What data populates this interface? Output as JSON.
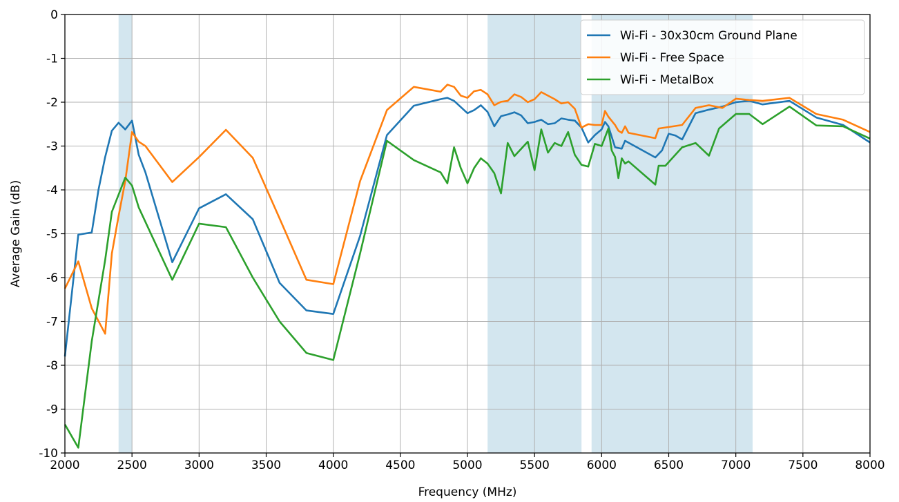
{
  "chart_data": {
    "type": "line",
    "title": "",
    "xlabel": "Frequency (MHz)",
    "ylabel": "Average Gain (dB)",
    "xlim": [
      2000,
      8000
    ],
    "ylim": [
      -10,
      0
    ],
    "xticks": [
      2000,
      2500,
      3000,
      3500,
      4000,
      4500,
      5000,
      5500,
      6000,
      6500,
      7000,
      7500,
      8000
    ],
    "yticks": [
      0,
      -1,
      -2,
      -3,
      -4,
      -5,
      -6,
      -7,
      -8,
      -9,
      -10
    ],
    "grid": true,
    "legend_position": "top-right",
    "shaded_bands": [
      [
        2400,
        2500
      ],
      [
        5150,
        5850
      ],
      [
        5925,
        7125
      ]
    ],
    "band_color": "#d3e6ef",
    "series": [
      {
        "name": "Wi-Fi - 30x30cm Ground Plane",
        "color": "#1f77b4",
        "points": [
          [
            2000,
            -7.8
          ],
          [
            2100,
            -5.02
          ],
          [
            2200,
            -4.97
          ],
          [
            2250,
            -4.0
          ],
          [
            2300,
            -3.25
          ],
          [
            2350,
            -2.65
          ],
          [
            2400,
            -2.47
          ],
          [
            2450,
            -2.62
          ],
          [
            2500,
            -2.42
          ],
          [
            2550,
            -3.2
          ],
          [
            2600,
            -3.6
          ],
          [
            2800,
            -5.65
          ],
          [
            3000,
            -4.42
          ],
          [
            3200,
            -4.1
          ],
          [
            3400,
            -4.67
          ],
          [
            3600,
            -6.12
          ],
          [
            3800,
            -6.75
          ],
          [
            4000,
            -6.83
          ],
          [
            4200,
            -5.05
          ],
          [
            4400,
            -2.75
          ],
          [
            4600,
            -2.08
          ],
          [
            4800,
            -1.93
          ],
          [
            4850,
            -1.9
          ],
          [
            4900,
            -1.97
          ],
          [
            5000,
            -2.25
          ],
          [
            5050,
            -2.18
          ],
          [
            5100,
            -2.07
          ],
          [
            5150,
            -2.22
          ],
          [
            5200,
            -2.55
          ],
          [
            5250,
            -2.32
          ],
          [
            5300,
            -2.28
          ],
          [
            5350,
            -2.23
          ],
          [
            5400,
            -2.3
          ],
          [
            5450,
            -2.48
          ],
          [
            5500,
            -2.45
          ],
          [
            5550,
            -2.4
          ],
          [
            5600,
            -2.5
          ],
          [
            5650,
            -2.48
          ],
          [
            5700,
            -2.37
          ],
          [
            5750,
            -2.4
          ],
          [
            5800,
            -2.42
          ],
          [
            5850,
            -2.58
          ],
          [
            5900,
            -2.92
          ],
          [
            5950,
            -2.75
          ],
          [
            6000,
            -2.62
          ],
          [
            6025,
            -2.45
          ],
          [
            6050,
            -2.55
          ],
          [
            6100,
            -3.03
          ],
          [
            6150,
            -3.06
          ],
          [
            6175,
            -2.88
          ],
          [
            6400,
            -3.26
          ],
          [
            6450,
            -3.1
          ],
          [
            6500,
            -2.72
          ],
          [
            6550,
            -2.76
          ],
          [
            6600,
            -2.85
          ],
          [
            6700,
            -2.25
          ],
          [
            6800,
            -2.17
          ],
          [
            6900,
            -2.1
          ],
          [
            7000,
            -2.0
          ],
          [
            7100,
            -1.97
          ],
          [
            7200,
            -2.05
          ],
          [
            7400,
            -1.97
          ],
          [
            7600,
            -2.35
          ],
          [
            7800,
            -2.52
          ],
          [
            8000,
            -2.92
          ]
        ]
      },
      {
        "name": "Wi-Fi - Free Space",
        "color": "#ff7f0e",
        "points": [
          [
            2000,
            -6.25
          ],
          [
            2100,
            -5.63
          ],
          [
            2200,
            -6.7
          ],
          [
            2300,
            -7.28
          ],
          [
            2350,
            -5.45
          ],
          [
            2400,
            -4.6
          ],
          [
            2450,
            -3.8
          ],
          [
            2500,
            -2.68
          ],
          [
            2550,
            -2.9
          ],
          [
            2600,
            -3.0
          ],
          [
            2800,
            -3.82
          ],
          [
            3000,
            -3.25
          ],
          [
            3200,
            -2.63
          ],
          [
            3400,
            -3.27
          ],
          [
            3600,
            -4.65
          ],
          [
            3800,
            -6.05
          ],
          [
            4000,
            -6.15
          ],
          [
            4200,
            -3.8
          ],
          [
            4400,
            -2.18
          ],
          [
            4600,
            -1.65
          ],
          [
            4800,
            -1.76
          ],
          [
            4850,
            -1.6
          ],
          [
            4900,
            -1.65
          ],
          [
            4950,
            -1.85
          ],
          [
            5000,
            -1.9
          ],
          [
            5050,
            -1.75
          ],
          [
            5100,
            -1.72
          ],
          [
            5150,
            -1.82
          ],
          [
            5200,
            -2.07
          ],
          [
            5250,
            -1.99
          ],
          [
            5300,
            -1.97
          ],
          [
            5350,
            -1.82
          ],
          [
            5400,
            -1.88
          ],
          [
            5450,
            -2.0
          ],
          [
            5500,
            -1.93
          ],
          [
            5550,
            -1.77
          ],
          [
            5600,
            -1.85
          ],
          [
            5650,
            -1.93
          ],
          [
            5700,
            -2.03
          ],
          [
            5750,
            -2.0
          ],
          [
            5800,
            -2.15
          ],
          [
            5850,
            -2.58
          ],
          [
            5900,
            -2.5
          ],
          [
            5950,
            -2.52
          ],
          [
            6000,
            -2.52
          ],
          [
            6025,
            -2.2
          ],
          [
            6050,
            -2.33
          ],
          [
            6100,
            -2.52
          ],
          [
            6125,
            -2.65
          ],
          [
            6150,
            -2.7
          ],
          [
            6175,
            -2.55
          ],
          [
            6200,
            -2.7
          ],
          [
            6400,
            -2.82
          ],
          [
            6425,
            -2.6
          ],
          [
            6600,
            -2.52
          ],
          [
            6700,
            -2.13
          ],
          [
            6800,
            -2.07
          ],
          [
            6900,
            -2.13
          ],
          [
            7000,
            -1.92
          ],
          [
            7100,
            -1.95
          ],
          [
            7200,
            -1.97
          ],
          [
            7400,
            -1.9
          ],
          [
            7600,
            -2.27
          ],
          [
            7800,
            -2.4
          ],
          [
            8000,
            -2.68
          ]
        ]
      },
      {
        "name": "Wi-Fi - MetalBox",
        "color": "#2ca02c",
        "points": [
          [
            2000,
            -9.35
          ],
          [
            2100,
            -9.88
          ],
          [
            2200,
            -7.45
          ],
          [
            2300,
            -5.6
          ],
          [
            2350,
            -4.5
          ],
          [
            2450,
            -3.72
          ],
          [
            2500,
            -3.9
          ],
          [
            2550,
            -4.4
          ],
          [
            2800,
            -6.05
          ],
          [
            3000,
            -4.77
          ],
          [
            3200,
            -4.85
          ],
          [
            3400,
            -6.0
          ],
          [
            3600,
            -7.0
          ],
          [
            3800,
            -7.72
          ],
          [
            4000,
            -7.88
          ],
          [
            4200,
            -5.45
          ],
          [
            4400,
            -2.88
          ],
          [
            4600,
            -3.32
          ],
          [
            4800,
            -3.6
          ],
          [
            4850,
            -3.85
          ],
          [
            4900,
            -3.03
          ],
          [
            4950,
            -3.5
          ],
          [
            5000,
            -3.85
          ],
          [
            5050,
            -3.5
          ],
          [
            5100,
            -3.28
          ],
          [
            5150,
            -3.4
          ],
          [
            5200,
            -3.62
          ],
          [
            5250,
            -4.08
          ],
          [
            5300,
            -2.93
          ],
          [
            5350,
            -3.23
          ],
          [
            5450,
            -2.9
          ],
          [
            5500,
            -3.55
          ],
          [
            5550,
            -2.62
          ],
          [
            5600,
            -3.15
          ],
          [
            5650,
            -2.93
          ],
          [
            5700,
            -3.0
          ],
          [
            5750,
            -2.68
          ],
          [
            5800,
            -3.2
          ],
          [
            5850,
            -3.43
          ],
          [
            5900,
            -3.47
          ],
          [
            5950,
            -2.95
          ],
          [
            6000,
            -3.0
          ],
          [
            6050,
            -2.6
          ],
          [
            6075,
            -3.1
          ],
          [
            6100,
            -3.25
          ],
          [
            6125,
            -3.73
          ],
          [
            6150,
            -3.28
          ],
          [
            6175,
            -3.4
          ],
          [
            6200,
            -3.35
          ],
          [
            6400,
            -3.88
          ],
          [
            6425,
            -3.45
          ],
          [
            6475,
            -3.45
          ],
          [
            6600,
            -3.03
          ],
          [
            6700,
            -2.93
          ],
          [
            6800,
            -3.22
          ],
          [
            6875,
            -2.6
          ],
          [
            7000,
            -2.27
          ],
          [
            7100,
            -2.27
          ],
          [
            7200,
            -2.5
          ],
          [
            7400,
            -2.1
          ],
          [
            7600,
            -2.53
          ],
          [
            7800,
            -2.55
          ],
          [
            8000,
            -2.83
          ]
        ]
      }
    ]
  }
}
